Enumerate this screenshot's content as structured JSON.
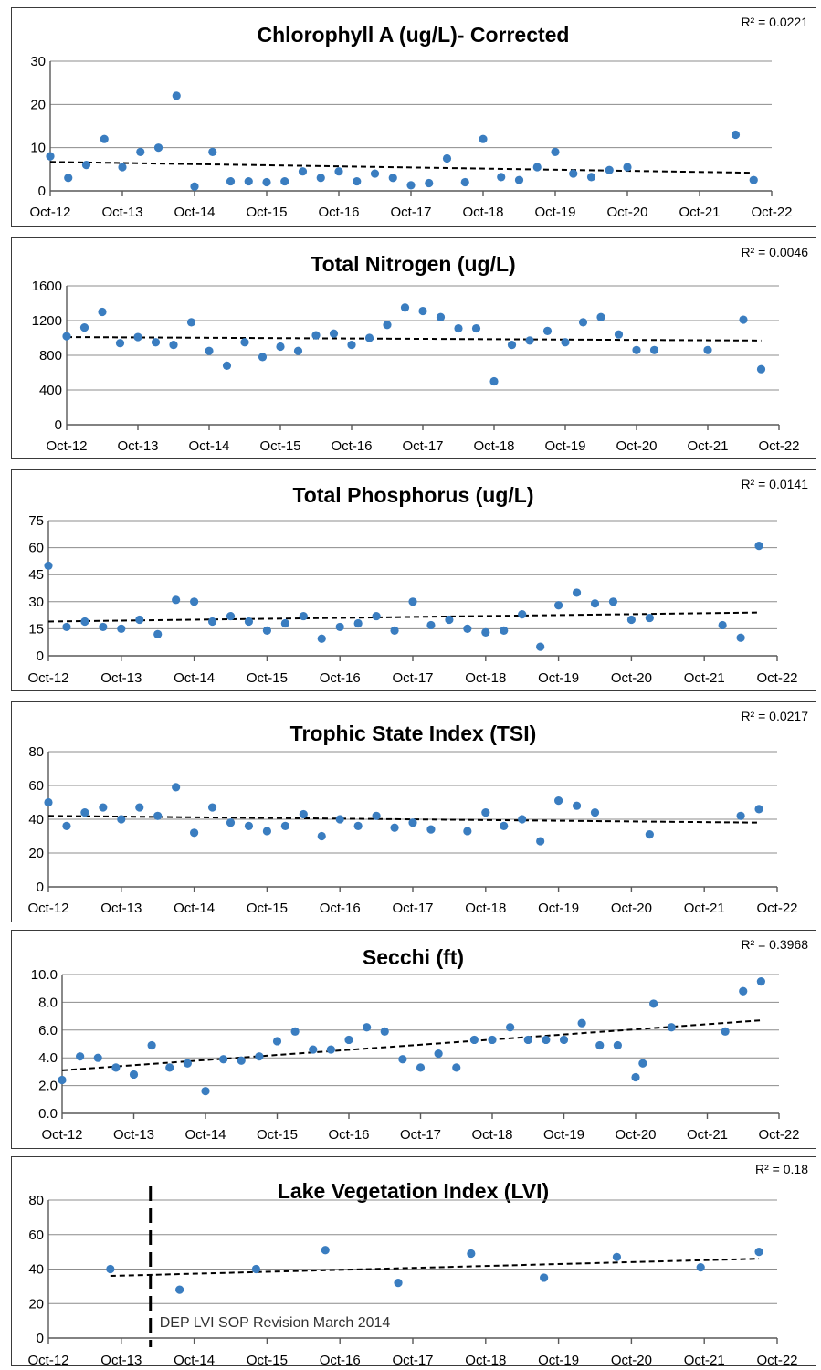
{
  "colors": {
    "marker": "#3A7DC0",
    "grid": "#8c8c8c",
    "axis": "#595959",
    "trend": "#000000"
  },
  "chart_data": [
    {
      "type": "scatter",
      "title": "Chlorophyll A (ug/L)- Corrected",
      "r2": "R² = 0.0221",
      "categories": [
        "Oct-12",
        "Oct-13",
        "Oct-14",
        "Oct-15",
        "Oct-16",
        "Oct-17",
        "Oct-18",
        "Oct-19",
        "Oct-20",
        "Oct-21",
        "Oct-22"
      ],
      "ylim": [
        0,
        30
      ],
      "yticks": [
        "0",
        "10",
        "20",
        "30"
      ],
      "trend": [
        [
          0,
          6.7
        ],
        [
          9.7,
          4.2
        ]
      ],
      "points": [
        [
          0.0,
          8
        ],
        [
          0.25,
          3
        ],
        [
          0.5,
          6
        ],
        [
          0.75,
          12
        ],
        [
          1.0,
          5.5
        ],
        [
          1.25,
          9
        ],
        [
          1.5,
          10
        ],
        [
          1.75,
          22
        ],
        [
          2.0,
          1
        ],
        [
          2.25,
          9
        ],
        [
          2.5,
          2.2
        ],
        [
          2.75,
          2.2
        ],
        [
          3.0,
          2
        ],
        [
          3.25,
          2.2
        ],
        [
          3.5,
          4.5
        ],
        [
          3.75,
          3
        ],
        [
          4.0,
          4.5
        ],
        [
          4.25,
          2.2
        ],
        [
          4.5,
          4
        ],
        [
          4.75,
          3
        ],
        [
          5.0,
          1.3
        ],
        [
          5.25,
          1.8
        ],
        [
          5.5,
          7.5
        ],
        [
          5.75,
          2
        ],
        [
          6.0,
          12
        ],
        [
          6.25,
          3.2
        ],
        [
          6.5,
          2.5
        ],
        [
          6.75,
          5.5
        ],
        [
          7.0,
          9
        ],
        [
          7.25,
          4
        ],
        [
          7.5,
          3.2
        ],
        [
          7.75,
          4.8
        ],
        [
          8.0,
          5.5
        ],
        [
          9.5,
          13
        ],
        [
          9.75,
          2.5
        ]
      ]
    },
    {
      "type": "scatter",
      "title": "Total Nitrogen (ug/L)",
      "r2": "R² = 0.0046",
      "categories": [
        "Oct-12",
        "Oct-13",
        "Oct-14",
        "Oct-15",
        "Oct-16",
        "Oct-17",
        "Oct-18",
        "Oct-19",
        "Oct-20",
        "Oct-21",
        "Oct-22"
      ],
      "ylim": [
        0,
        1600
      ],
      "yticks": [
        "0",
        "400",
        "800",
        "1200",
        "1600"
      ],
      "trend": [
        [
          0,
          1010
        ],
        [
          9.75,
          970
        ]
      ],
      "points": [
        [
          0.0,
          1020
        ],
        [
          0.25,
          1120
        ],
        [
          0.5,
          1300
        ],
        [
          0.75,
          940
        ],
        [
          1.0,
          1010
        ],
        [
          1.25,
          950
        ],
        [
          1.5,
          920
        ],
        [
          1.75,
          1180
        ],
        [
          2.0,
          850
        ],
        [
          2.25,
          680
        ],
        [
          2.5,
          950
        ],
        [
          2.75,
          780
        ],
        [
          3.0,
          900
        ],
        [
          3.25,
          850
        ],
        [
          3.5,
          1030
        ],
        [
          3.75,
          1050
        ],
        [
          4.0,
          920
        ],
        [
          4.25,
          1000
        ],
        [
          4.5,
          1150
        ],
        [
          4.75,
          1350
        ],
        [
          5.0,
          1310
        ],
        [
          5.25,
          1240
        ],
        [
          5.5,
          1110
        ],
        [
          5.75,
          1110
        ],
        [
          6.0,
          500
        ],
        [
          6.25,
          920
        ],
        [
          6.5,
          970
        ],
        [
          6.75,
          1080
        ],
        [
          7.0,
          950
        ],
        [
          7.25,
          1180
        ],
        [
          7.5,
          1240
        ],
        [
          7.75,
          1040
        ],
        [
          8.0,
          860
        ],
        [
          8.25,
          860
        ],
        [
          9.0,
          860
        ],
        [
          9.5,
          1210
        ],
        [
          9.75,
          640
        ]
      ]
    },
    {
      "type": "scatter",
      "title": "Total Phosphorus (ug/L)",
      "r2": "R² = 0.0141",
      "categories": [
        "Oct-12",
        "Oct-13",
        "Oct-14",
        "Oct-15",
        "Oct-16",
        "Oct-17",
        "Oct-18",
        "Oct-19",
        "Oct-20",
        "Oct-21",
        "Oct-22"
      ],
      "ylim": [
        0,
        75
      ],
      "yticks": [
        "0",
        "15",
        "30",
        "45",
        "60",
        "75"
      ],
      "trend": [
        [
          0,
          19
        ],
        [
          9.75,
          24
        ]
      ],
      "points": [
        [
          0.0,
          50
        ],
        [
          0.25,
          16
        ],
        [
          0.5,
          19
        ],
        [
          0.75,
          16
        ],
        [
          1.0,
          15
        ],
        [
          1.25,
          20
        ],
        [
          1.5,
          12
        ],
        [
          1.75,
          31
        ],
        [
          2.0,
          30
        ],
        [
          2.25,
          19
        ],
        [
          2.5,
          22
        ],
        [
          2.75,
          19
        ],
        [
          3.0,
          14
        ],
        [
          3.25,
          18
        ],
        [
          3.5,
          22
        ],
        [
          3.75,
          9.5
        ],
        [
          4.0,
          16
        ],
        [
          4.25,
          18
        ],
        [
          4.5,
          22
        ],
        [
          4.75,
          14
        ],
        [
          5.0,
          30
        ],
        [
          5.25,
          17
        ],
        [
          5.5,
          20
        ],
        [
          5.75,
          15
        ],
        [
          6.0,
          13
        ],
        [
          6.25,
          14
        ],
        [
          6.5,
          23
        ],
        [
          6.75,
          5
        ],
        [
          7.0,
          28
        ],
        [
          7.25,
          35
        ],
        [
          7.5,
          29
        ],
        [
          7.75,
          30
        ],
        [
          8.0,
          20
        ],
        [
          8.25,
          21
        ],
        [
          9.25,
          17
        ],
        [
          9.5,
          10
        ],
        [
          9.75,
          61
        ]
      ]
    },
    {
      "type": "scatter",
      "title": "Trophic State Index (TSI)",
      "r2": "R² = 0.0217",
      "categories": [
        "Oct-12",
        "Oct-13",
        "Oct-14",
        "Oct-15",
        "Oct-16",
        "Oct-17",
        "Oct-18",
        "Oct-19",
        "Oct-20",
        "Oct-21",
        "Oct-22"
      ],
      "ylim": [
        0,
        80
      ],
      "yticks": [
        "0",
        "20",
        "40",
        "60",
        "80"
      ],
      "trend": [
        [
          0,
          42
        ],
        [
          9.75,
          38
        ]
      ],
      "points": [
        [
          0.0,
          50
        ],
        [
          0.25,
          36
        ],
        [
          0.5,
          44
        ],
        [
          0.75,
          47
        ],
        [
          1.0,
          40
        ],
        [
          1.25,
          47
        ],
        [
          1.5,
          42
        ],
        [
          1.75,
          59
        ],
        [
          2.0,
          32
        ],
        [
          2.25,
          47
        ],
        [
          2.5,
          38
        ],
        [
          2.75,
          36
        ],
        [
          3.0,
          33
        ],
        [
          3.25,
          36
        ],
        [
          3.5,
          43
        ],
        [
          3.75,
          30
        ],
        [
          4.0,
          40
        ],
        [
          4.25,
          36
        ],
        [
          4.5,
          42
        ],
        [
          4.75,
          35
        ],
        [
          5.0,
          38
        ],
        [
          5.25,
          34
        ],
        [
          5.75,
          33
        ],
        [
          6.0,
          44
        ],
        [
          6.25,
          36
        ],
        [
          6.5,
          40
        ],
        [
          6.75,
          27
        ],
        [
          7.0,
          51
        ],
        [
          7.25,
          48
        ],
        [
          7.5,
          44
        ],
        [
          8.25,
          31
        ],
        [
          9.5,
          42
        ],
        [
          9.75,
          46
        ]
      ]
    },
    {
      "type": "scatter",
      "title": "Secchi (ft)",
      "r2": "R² = 0.3968",
      "categories": [
        "Oct-12",
        "Oct-13",
        "Oct-14",
        "Oct-15",
        "Oct-16",
        "Oct-17",
        "Oct-18",
        "Oct-19",
        "Oct-20",
        "Oct-21",
        "Oct-22"
      ],
      "ylim": [
        0,
        10
      ],
      "yticks": [
        "0.0",
        "2.0",
        "4.0",
        "6.0",
        "8.0",
        "10.0"
      ],
      "trend": [
        [
          0,
          3.1
        ],
        [
          9.75,
          6.7
        ]
      ],
      "points": [
        [
          -0.0,
          2.4
        ],
        [
          0.25,
          4.1
        ],
        [
          0.5,
          4.0
        ],
        [
          0.75,
          3.3
        ],
        [
          1.0,
          2.8
        ],
        [
          1.25,
          4.9
        ],
        [
          1.5,
          3.3
        ],
        [
          1.75,
          3.6
        ],
        [
          2.0,
          1.6
        ],
        [
          2.25,
          3.9
        ],
        [
          2.5,
          3.8
        ],
        [
          2.75,
          4.1
        ],
        [
          3.0,
          5.2
        ],
        [
          3.25,
          5.9
        ],
        [
          3.5,
          4.6
        ],
        [
          3.75,
          4.6
        ],
        [
          4.0,
          5.3
        ],
        [
          4.25,
          6.2
        ],
        [
          4.5,
          5.9
        ],
        [
          4.75,
          3.9
        ],
        [
          5.0,
          3.3
        ],
        [
          5.25,
          4.3
        ],
        [
          5.5,
          3.3
        ],
        [
          5.75,
          5.3
        ],
        [
          6.0,
          5.3
        ],
        [
          6.25,
          6.2
        ],
        [
          6.5,
          5.3
        ],
        [
          6.75,
          5.3
        ],
        [
          7.0,
          5.3
        ],
        [
          7.25,
          6.5
        ],
        [
          7.5,
          4.9
        ],
        [
          7.75,
          4.9
        ],
        [
          8.0,
          2.6
        ],
        [
          8.1,
          3.6
        ],
        [
          8.25,
          7.9
        ],
        [
          8.5,
          6.2
        ],
        [
          9.25,
          5.9
        ],
        [
          9.5,
          8.8
        ],
        [
          9.75,
          9.5
        ]
      ]
    },
    {
      "type": "scatter",
      "title": "Lake Vegetation Index (LVI)",
      "r2": "R² = 0.18",
      "categories": [
        "Oct-12",
        "Oct-13",
        "Oct-14",
        "Oct-15",
        "Oct-16",
        "Oct-17",
        "Oct-18",
        "Oct-19",
        "Oct-20",
        "Oct-21",
        "Oct-22"
      ],
      "ylim": [
        0,
        80
      ],
      "yticks": [
        "0",
        "20",
        "40",
        "60",
        "80"
      ],
      "trend": [
        [
          0.85,
          36
        ],
        [
          9.75,
          46
        ]
      ],
      "points": [
        [
          0.85,
          40
        ],
        [
          1.8,
          28
        ],
        [
          2.85,
          40
        ],
        [
          3.8,
          51
        ],
        [
          4.8,
          32
        ],
        [
          5.8,
          49
        ],
        [
          6.8,
          35
        ],
        [
          7.8,
          47
        ],
        [
          8.95,
          41
        ],
        [
          9.75,
          50
        ]
      ],
      "annotation": {
        "text": "DEP LVI SOP Revision March 2014",
        "x": 1.4
      }
    }
  ]
}
